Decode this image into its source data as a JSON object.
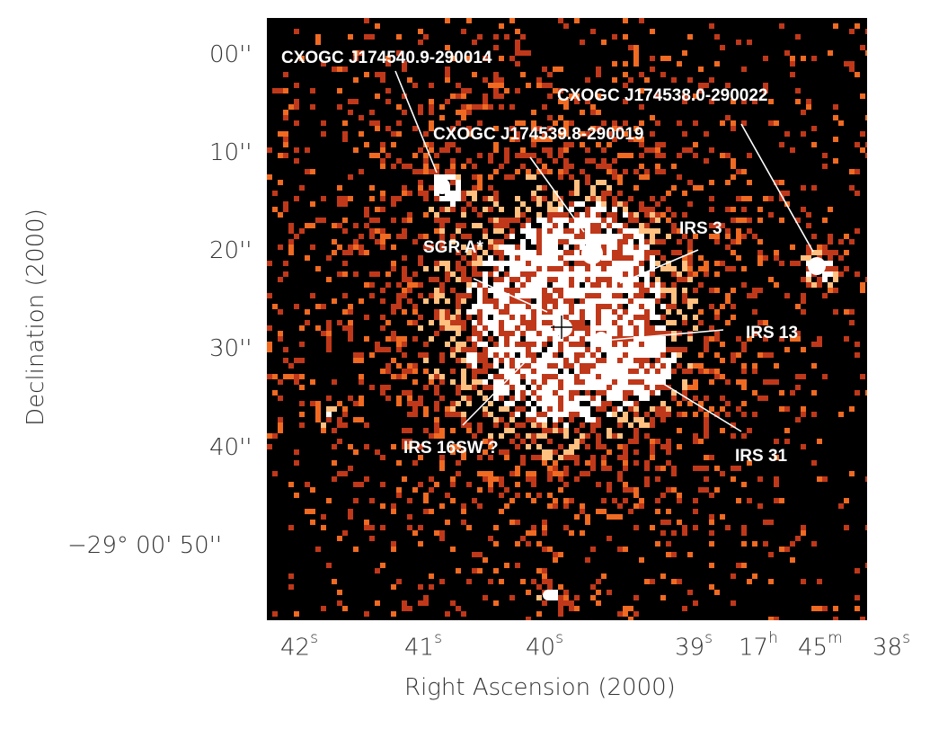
{
  "image": {
    "colors": {
      "background": "#000000",
      "pixel_dim": "#c0381a",
      "pixel_mid": "#f06a22",
      "pixel_bright": "#ffc080",
      "pixel_hot": "#ffffff",
      "label": "#ffffff",
      "axis_text": "#333333"
    },
    "labels": {
      "cxo_1": "CXOGC J174540.9-290014",
      "cxo_2": "CXOGC J174538.0-290022",
      "cxo_3": "CXOGC J174539.8-290019",
      "irs3": "IRS 3",
      "sgra": "SGR A*",
      "irs13": "IRS 13",
      "irs16sw": "IRS 16SW ?",
      "irs31": "IRS 31"
    }
  },
  "axes": {
    "y_title": "Declination (2000)",
    "x_title": "Right Ascension (2000)",
    "y_ticks": [
      {
        "text": "00''"
      },
      {
        "text": "10''"
      },
      {
        "text": "20''"
      },
      {
        "text": "30''"
      },
      {
        "text": "40''"
      },
      {
        "text": "−29° 00' 50''"
      }
    ],
    "x_ticks": {
      "t42": "42",
      "t42u": "s",
      "t41": "41",
      "t41u": "s",
      "t40": "40",
      "t40u": "s",
      "t39": "39",
      "t39u": "s",
      "t17": "17",
      "t17u": "h",
      "t45": "45",
      "t45u": "m",
      "t38": "38",
      "t38u": "s"
    }
  }
}
